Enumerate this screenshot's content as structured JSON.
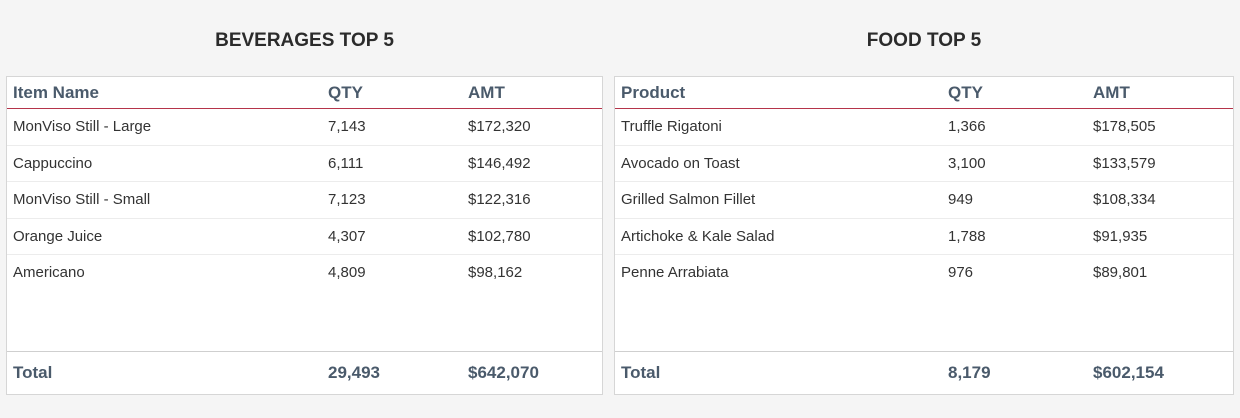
{
  "beverages": {
    "title": "BEVERAGES TOP 5",
    "headers": [
      "Item Name",
      "QTY",
      "AMT"
    ],
    "rows": [
      [
        "MonViso Still - Large",
        "7,143",
        "$172,320"
      ],
      [
        "Cappuccino",
        "6,111",
        "$146,492"
      ],
      [
        "MonViso Still - Small",
        "7,123",
        "$122,316"
      ],
      [
        "Orange Juice",
        "4,307",
        "$102,780"
      ],
      [
        "Americano",
        "4,809",
        "$98,162"
      ]
    ],
    "total": [
      "Total",
      "29,493",
      "$642,070"
    ]
  },
  "food": {
    "title": "FOOD TOP 5",
    "headers": [
      "Product",
      "QTY",
      "AMT"
    ],
    "rows": [
      [
        "Truffle Rigatoni",
        "1,366",
        "$178,505"
      ],
      [
        "Avocado on Toast",
        "3,100",
        "$133,579"
      ],
      [
        "Grilled Salmon Fillet",
        "949",
        "$108,334"
      ],
      [
        "Artichoke & Kale Salad",
        "1,788",
        "$91,935"
      ],
      [
        "Penne Arrabiata",
        "976",
        "$89,801"
      ]
    ],
    "total": [
      "Total",
      "8,179",
      "$602,154"
    ]
  },
  "colors": {
    "header_rule": "#b5344a",
    "header_text": "#4a5a6b",
    "background": "#f5f5f5"
  }
}
